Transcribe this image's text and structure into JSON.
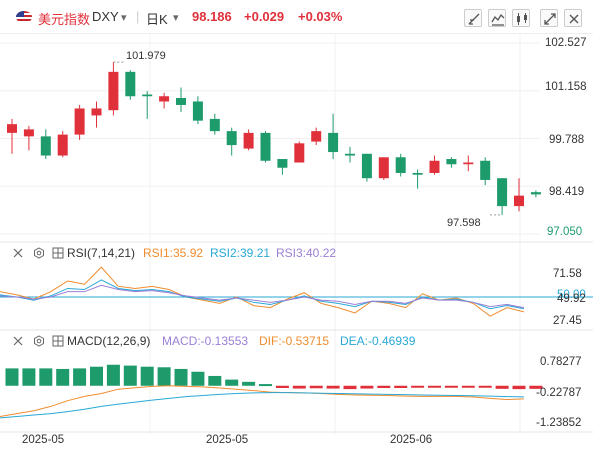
{
  "header": {
    "symbol_name": "美元指数",
    "symbol": "DXY",
    "symbol_dropdown": "▾",
    "period": "日K",
    "period_dropdown": "▾",
    "price": "98.186",
    "change": "+0.029",
    "change_pct": "+0.03%",
    "toolbar_icons": [
      "draw-tool-icon",
      "indicator-icon",
      "chart-type-icon",
      "fullscreen-icon",
      "close-icon"
    ]
  },
  "main_chart": {
    "price_axis": [
      "102.527",
      "101.158",
      "99.788",
      "98.419",
      "97.050"
    ],
    "high_label": "101.979",
    "low_label": "97.598",
    "colors": {
      "up": "#e0313b",
      "down": "#1e9b6b",
      "grid": "#f0f0f0"
    }
  },
  "chart_data": {
    "type": "candlestick",
    "ylim": [
      97.05,
      102.527
    ],
    "candles": [
      {
        "o": 99.95,
        "h": 100.35,
        "l": 99.35,
        "c": 100.2
      },
      {
        "o": 99.85,
        "h": 100.15,
        "l": 99.45,
        "c": 100.05
      },
      {
        "o": 99.85,
        "h": 100.05,
        "l": 99.2,
        "c": 99.3
      },
      {
        "o": 99.3,
        "h": 100.0,
        "l": 99.25,
        "c": 99.9
      },
      {
        "o": 99.9,
        "h": 100.75,
        "l": 99.75,
        "c": 100.65
      },
      {
        "o": 100.45,
        "h": 100.85,
        "l": 100.1,
        "c": 100.65
      },
      {
        "o": 100.6,
        "h": 101.979,
        "l": 100.45,
        "c": 101.7
      },
      {
        "o": 101.7,
        "h": 101.75,
        "l": 100.9,
        "c": 101.0
      },
      {
        "o": 101.05,
        "h": 101.15,
        "l": 100.35,
        "c": 101.0
      },
      {
        "o": 100.85,
        "h": 101.1,
        "l": 100.65,
        "c": 101.0
      },
      {
        "o": 100.95,
        "h": 101.25,
        "l": 100.55,
        "c": 100.75
      },
      {
        "o": 100.85,
        "h": 101.0,
        "l": 100.2,
        "c": 100.3
      },
      {
        "o": 100.35,
        "h": 100.5,
        "l": 99.9,
        "c": 100.0
      },
      {
        "o": 100.0,
        "h": 100.1,
        "l": 99.3,
        "c": 99.6
      },
      {
        "o": 99.5,
        "h": 100.05,
        "l": 99.45,
        "c": 99.95
      },
      {
        "o": 99.95,
        "h": 100.0,
        "l": 99.1,
        "c": 99.15
      },
      {
        "o": 99.2,
        "h": 99.2,
        "l": 98.75,
        "c": 98.95
      },
      {
        "o": 99.1,
        "h": 99.7,
        "l": 99.1,
        "c": 99.65
      },
      {
        "o": 99.7,
        "h": 100.1,
        "l": 99.6,
        "c": 100.0
      },
      {
        "o": 99.95,
        "h": 100.5,
        "l": 99.2,
        "c": 99.4
      },
      {
        "o": 99.35,
        "h": 99.55,
        "l": 99.1,
        "c": 99.3
      },
      {
        "o": 99.35,
        "h": 99.35,
        "l": 98.55,
        "c": 98.65
      },
      {
        "o": 98.65,
        "h": 99.25,
        "l": 98.6,
        "c": 99.25
      },
      {
        "o": 99.25,
        "h": 99.35,
        "l": 98.7,
        "c": 98.8
      },
      {
        "o": 98.8,
        "h": 98.9,
        "l": 98.35,
        "c": 98.75
      },
      {
        "o": 98.8,
        "h": 99.3,
        "l": 98.75,
        "c": 99.15
      },
      {
        "o": 99.2,
        "h": 99.25,
        "l": 98.95,
        "c": 99.05
      },
      {
        "o": 99.05,
        "h": 99.3,
        "l": 98.85,
        "c": 99.1
      },
      {
        "o": 99.15,
        "h": 99.25,
        "l": 98.45,
        "c": 98.6
      },
      {
        "o": 98.65,
        "h": 98.65,
        "l": 97.598,
        "c": 97.85
      },
      {
        "o": 97.85,
        "h": 98.65,
        "l": 97.7,
        "c": 98.15
      },
      {
        "o": 98.25,
        "h": 98.3,
        "l": 98.1,
        "c": 98.186
      }
    ],
    "rsi": {
      "axis": [
        "71.58",
        "49.92",
        "27.45"
      ],
      "ref_label": "50.00",
      "series": [
        {
          "name": "RSI1",
          "color": "#f08c2e",
          "values": [
            55,
            52,
            48,
            55,
            65,
            62,
            78,
            60,
            58,
            60,
            57,
            50,
            47,
            44,
            50,
            42,
            40,
            48,
            54,
            44,
            40,
            35,
            46,
            44,
            40,
            53,
            47,
            49,
            44,
            32,
            40,
            36
          ]
        },
        {
          "name": "RSI2",
          "color": "#29a8d6",
          "values": [
            52,
            50,
            47,
            51,
            58,
            57,
            66,
            58,
            56,
            57,
            55,
            50,
            48,
            46,
            49,
            45,
            43,
            47,
            51,
            46,
            44,
            41,
            46,
            45,
            43,
            50,
            47,
            48,
            45,
            39,
            42,
            39
          ]
        },
        {
          "name": "RSI3",
          "color": "#9b7fd6",
          "values": [
            51,
            50,
            48,
            50,
            55,
            55,
            61,
            57,
            55,
            56,
            54,
            51,
            49,
            47,
            49,
            47,
            45,
            47,
            50,
            47,
            46,
            43,
            46,
            46,
            44,
            49,
            47,
            47,
            45,
            41,
            43,
            40
          ]
        }
      ]
    },
    "macd": {
      "axis": [
        "0.78277",
        "-0.22787",
        "-1.23852"
      ],
      "hist": [
        0.62,
        0.62,
        0.62,
        0.6,
        0.62,
        0.68,
        0.75,
        0.72,
        0.68,
        0.66,
        0.6,
        0.5,
        0.35,
        0.22,
        0.14,
        0.06,
        -0.08,
        -0.1,
        -0.09,
        -0.1,
        -0.12,
        -0.1,
        -0.08,
        -0.08,
        -0.07,
        -0.06,
        -0.06,
        -0.07,
        -0.07,
        -0.11,
        -0.12,
        -0.11
      ],
      "dif": [
        -1.15,
        -1.05,
        -0.95,
        -0.8,
        -0.6,
        -0.45,
        -0.35,
        -0.2,
        -0.15,
        -0.1,
        -0.08,
        -0.1,
        -0.12,
        -0.16,
        -0.2,
        -0.25,
        -0.3,
        -0.32,
        -0.33,
        -0.35,
        -0.38,
        -0.4,
        -0.41,
        -0.42,
        -0.44,
        -0.45,
        -0.45,
        -0.45,
        -0.47,
        -0.52,
        -0.56,
        -0.537
      ],
      "dea": [
        -1.2,
        -1.15,
        -1.1,
        -1.05,
        -0.98,
        -0.9,
        -0.8,
        -0.72,
        -0.65,
        -0.58,
        -0.52,
        -0.46,
        -0.42,
        -0.38,
        -0.35,
        -0.33,
        -0.32,
        -0.32,
        -0.33,
        -0.34,
        -0.35,
        -0.36,
        -0.37,
        -0.38,
        -0.39,
        -0.4,
        -0.41,
        -0.42,
        -0.43,
        -0.44,
        -0.46,
        -0.469
      ]
    }
  },
  "rsi_panel": {
    "title": "RSI(7,14,21)",
    "rsi1": "RSI1:35.92",
    "rsi2": "RSI2:39.21",
    "rsi3": "RSI3:40.22"
  },
  "macd_panel": {
    "title": "MACD(12,26,9)",
    "macd": "MACD:-0.13553",
    "dif": "DIF:-0.53715",
    "dea": "DEA:-0.46939"
  },
  "time_axis": [
    "2025-05",
    "2025-05",
    "2025-06"
  ]
}
